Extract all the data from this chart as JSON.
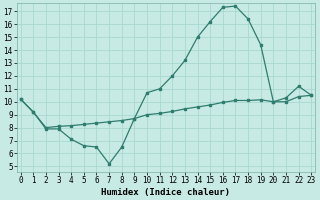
{
  "xlabel": "Humidex (Indice chaleur)",
  "x_ticks": [
    0,
    1,
    2,
    3,
    4,
    5,
    6,
    7,
    8,
    9,
    10,
    11,
    12,
    13,
    14,
    15,
    16,
    17,
    18,
    19,
    20,
    21,
    22,
    23
  ],
  "y_ticks": [
    5,
    6,
    7,
    8,
    9,
    10,
    11,
    12,
    13,
    14,
    15,
    16,
    17
  ],
  "xlim": [
    -0.3,
    23.3
  ],
  "ylim": [
    4.6,
    17.6
  ],
  "background_color": "#c8eae4",
  "grid_color": "#a8d8d0",
  "line_color": "#2e7d6e",
  "line1_x": [
    0,
    1,
    2,
    3,
    4,
    5,
    6,
    7,
    8,
    9,
    10,
    11,
    12,
    13,
    14,
    15,
    16,
    17,
    18,
    19,
    20,
    21,
    22,
    23
  ],
  "line1_y": [
    10.2,
    9.2,
    7.9,
    7.9,
    7.1,
    6.6,
    6.5,
    5.2,
    6.5,
    8.7,
    10.7,
    11.0,
    12.0,
    13.2,
    15.0,
    16.2,
    17.3,
    17.4,
    16.4,
    14.4,
    10.0,
    10.0,
    10.4,
    10.5
  ],
  "line2_x": [
    0,
    1,
    2,
    3,
    4,
    5,
    6,
    7,
    8,
    9,
    10,
    11,
    12,
    13,
    14,
    15,
    16,
    17,
    18,
    19,
    20,
    21,
    22,
    23
  ],
  "line2_y": [
    10.2,
    9.2,
    8.0,
    8.1,
    8.15,
    8.25,
    8.35,
    8.45,
    8.55,
    8.7,
    9.0,
    9.1,
    9.25,
    9.45,
    9.6,
    9.75,
    9.95,
    10.1,
    10.1,
    10.15,
    10.0,
    10.3,
    11.2,
    10.5
  ],
  "tick_fontsize": 5.5,
  "xlabel_fontsize": 6.5
}
